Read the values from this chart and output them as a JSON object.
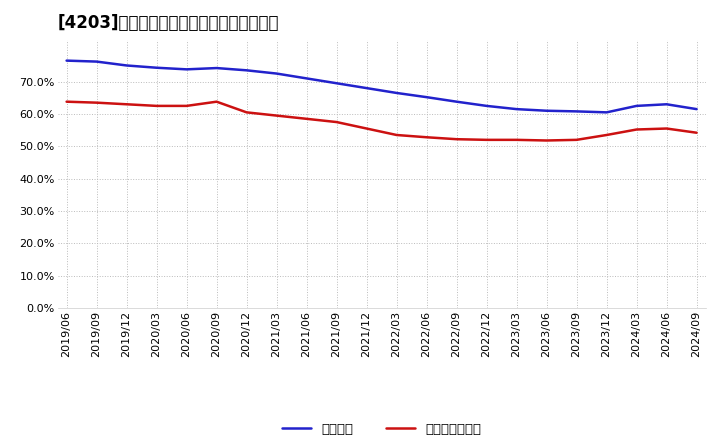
{
  "title": "[4203]　固定比率、固定長期適合率の推移",
  "x_labels": [
    "2019/06",
    "2019/09",
    "2019/12",
    "2020/03",
    "2020/06",
    "2020/09",
    "2020/12",
    "2021/03",
    "2021/06",
    "2021/09",
    "2021/12",
    "2022/03",
    "2022/06",
    "2022/09",
    "2022/12",
    "2023/03",
    "2023/06",
    "2023/09",
    "2023/12",
    "2024/03",
    "2024/06",
    "2024/09"
  ],
  "fixed_ratio": [
    76.5,
    76.2,
    75.0,
    74.3,
    73.8,
    74.2,
    73.5,
    72.5,
    71.0,
    69.5,
    68.0,
    66.5,
    65.2,
    63.8,
    62.5,
    61.5,
    61.0,
    60.8,
    60.5,
    62.5,
    63.0,
    61.5
  ],
  "fixed_long_ratio": [
    63.8,
    63.5,
    63.0,
    62.5,
    62.5,
    63.8,
    60.5,
    59.5,
    58.5,
    57.5,
    55.5,
    53.5,
    52.8,
    52.2,
    52.0,
    52.0,
    51.8,
    52.0,
    53.5,
    55.2,
    55.5,
    54.2
  ],
  "ylim": [
    0,
    83
  ],
  "yticks": [
    0,
    10,
    20,
    30,
    40,
    50,
    60,
    70
  ],
  "ytick_labels": [
    "0.0%",
    "10.0%",
    "20.0%",
    "30.0%",
    "40.0%",
    "50.0%",
    "60.0%",
    "70.0%"
  ],
  "line1_color": "#2222cc",
  "line2_color": "#cc1111",
  "line1_label": "固定比率",
  "line2_label": "固定長期適合率",
  "bg_color": "#ffffff",
  "plot_bg_color": "#ffffff",
  "grid_color": "#bbbbbb",
  "title_fontsize": 12,
  "legend_fontsize": 9.5,
  "tick_fontsize": 8
}
